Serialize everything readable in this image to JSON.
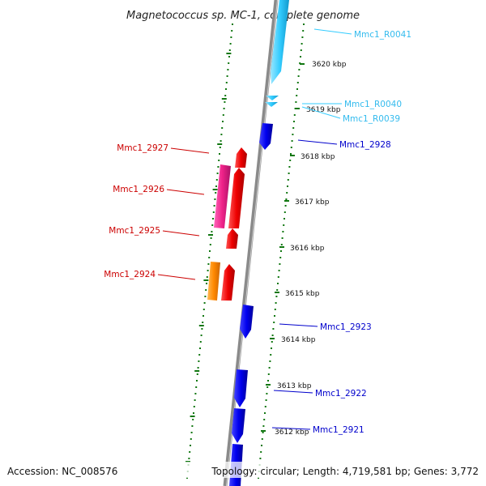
{
  "title": "Magnetococcus sp. MC-1, complete genome",
  "accession": "Accession: NC_008576",
  "topology": "Topology: circular; Length: 4,719,581 bp; Genes: 3,772",
  "colors": {
    "forward_gene": "#0000ee",
    "rna": "#33ccff",
    "reverse_gene": "#ee0000",
    "pink_gene": "#ee2288",
    "orange_gene": "#ff8800",
    "backbone": "#8a8a8a",
    "dots": "#117711"
  },
  "ticks": [
    {
      "label": "3620 kbp"
    },
    {
      "label": "3619 kbp"
    },
    {
      "label": "3618 kbp"
    },
    {
      "label": "3617 kbp"
    },
    {
      "label": "3616 kbp"
    },
    {
      "label": "3615 kbp"
    },
    {
      "label": "3614 kbp"
    },
    {
      "label": "3613 kbp"
    },
    {
      "label": "3612 kbp"
    }
  ],
  "genes_right": [
    {
      "label": "Mmc1_R0041",
      "type": "rna"
    },
    {
      "label": "Mmc1_R0040",
      "type": "rna"
    },
    {
      "label": "Mmc1_R0039",
      "type": "rna"
    },
    {
      "label": "Mmc1_2928",
      "type": "forward_gene"
    },
    {
      "label": "Mmc1_2923",
      "type": "forward_gene"
    },
    {
      "label": "Mmc1_2922",
      "type": "forward_gene"
    },
    {
      "label": "Mmc1_2921",
      "type": "forward_gene"
    }
  ],
  "genes_left": [
    {
      "label": "Mmc1_2927",
      "type": "reverse_gene"
    },
    {
      "label": "Mmc1_2926",
      "type": "reverse_gene"
    },
    {
      "label": "Mmc1_2925",
      "type": "reverse_gene"
    },
    {
      "label": "Mmc1_2924",
      "type": "reverse_gene"
    }
  ]
}
